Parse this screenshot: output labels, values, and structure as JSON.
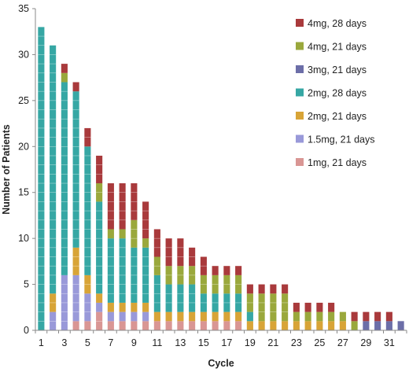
{
  "chart_data": {
    "type": "bar",
    "stacked": true,
    "title": "",
    "xlabel": "Cycle",
    "ylabel": "Number of Patients",
    "ylim": [
      0,
      35
    ],
    "y_ticks": [
      0,
      5,
      10,
      15,
      20,
      25,
      30,
      35
    ],
    "x_tick_labels": [
      "1",
      "3",
      "5",
      "7",
      "9",
      "11",
      "13",
      "15",
      "17",
      "19",
      "21",
      "23",
      "25",
      "27",
      "29",
      "31"
    ],
    "grid": false,
    "legend_position": "top-right",
    "categories": [
      1,
      2,
      3,
      4,
      5,
      6,
      7,
      8,
      9,
      10,
      11,
      12,
      13,
      14,
      15,
      16,
      17,
      18,
      19,
      20,
      21,
      22,
      23,
      24,
      25,
      26,
      27,
      28,
      29,
      30,
      31,
      32
    ],
    "series": [
      {
        "name": "1mg, 21 days",
        "color": "#d99694",
        "values": [
          0,
          0,
          0,
          1,
          1,
          2,
          1,
          1,
          1,
          1,
          1,
          1,
          1,
          1,
          1,
          1,
          1,
          1,
          0,
          0,
          0,
          0,
          0,
          0,
          0,
          0,
          0,
          0,
          0,
          0,
          0,
          0
        ]
      },
      {
        "name": "1.5mg, 21 days",
        "color": "#9999d9",
        "values": [
          0,
          2,
          6,
          5,
          3,
          1,
          1,
          1,
          1,
          1,
          0,
          0,
          0,
          0,
          0,
          0,
          0,
          0,
          0,
          0,
          0,
          0,
          0,
          0,
          0,
          0,
          0,
          0,
          0,
          0,
          0,
          0
        ]
      },
      {
        "name": "2mg, 21 days",
        "color": "#d8a437",
        "values": [
          0,
          2,
          0,
          3,
          2,
          1,
          1,
          1,
          1,
          1,
          1,
          1,
          1,
          1,
          1,
          1,
          1,
          1,
          1,
          1,
          1,
          1,
          1,
          1,
          1,
          1,
          1,
          0,
          0,
          0,
          0,
          0
        ]
      },
      {
        "name": "2mg, 28 days",
        "color": "#36a7a4",
        "values": [
          33,
          27,
          21,
          17,
          14,
          10,
          7,
          7,
          6,
          6,
          4,
          3,
          3,
          3,
          2,
          2,
          2,
          2,
          1,
          0,
          0,
          0,
          0,
          0,
          0,
          0,
          0,
          0,
          0,
          0,
          0,
          0
        ]
      },
      {
        "name": "3mg, 21 days",
        "color": "#6c6ea8",
        "values": [
          0,
          0,
          0,
          0,
          0,
          0,
          0,
          0,
          0,
          0,
          0,
          0,
          0,
          0,
          0,
          0,
          0,
          0,
          0,
          0,
          0,
          0,
          0,
          0,
          0,
          0,
          0,
          0,
          1,
          1,
          1,
          1
        ]
      },
      {
        "name": "4mg, 21 days",
        "color": "#9aa83c",
        "values": [
          0,
          0,
          1,
          0,
          0,
          2,
          1,
          1,
          3,
          1,
          2,
          2,
          2,
          2,
          2,
          2,
          2,
          2,
          2,
          3,
          3,
          3,
          1,
          1,
          1,
          1,
          1,
          1,
          0,
          0,
          0,
          0
        ]
      },
      {
        "name": "4mg, 28 days",
        "color": "#a93a3c",
        "values": [
          0,
          0,
          1,
          1,
          2,
          3,
          5,
          5,
          4,
          4,
          3,
          3,
          3,
          2,
          2,
          1,
          1,
          1,
          1,
          1,
          1,
          1,
          1,
          1,
          1,
          1,
          0,
          1,
          1,
          1,
          1,
          0
        ]
      }
    ],
    "legend_order": [
      "4mg, 28 days",
      "4mg, 21 days",
      "3mg, 21 days",
      "2mg, 28 days",
      "2mg, 21 days",
      "1.5mg, 21 days",
      "1mg, 21 days"
    ]
  }
}
